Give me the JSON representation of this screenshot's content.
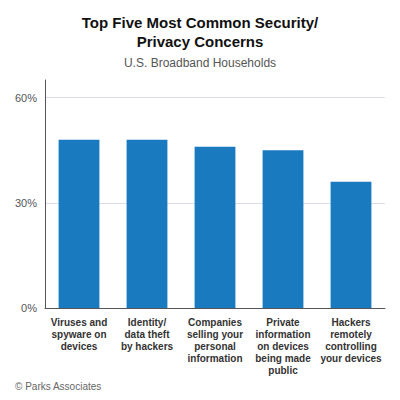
{
  "chart_data": {
    "type": "bar",
    "title": "Top Five Most Common Security/\nPrivacy Concerns",
    "subtitle": "U.S. Broadband Households",
    "footer": "© Parks Associates",
    "categories": [
      "Viruses and\nspyware on\ndevices",
      "Identity/\ndata theft\nby hackers",
      "Companies\nselling your\npersonal\ninformation",
      "Private\ninformation\non devices\nbeing made\npublic",
      "Hackers\nremotely\ncontrolling\nyour devices"
    ],
    "values": [
      48,
      48,
      46,
      45,
      36
    ],
    "color": "#1a7abf",
    "ylim": [
      0,
      65
    ],
    "yticks": [
      {
        "value": 0,
        "label": "0%"
      },
      {
        "value": 30,
        "label": "30%"
      },
      {
        "value": 60,
        "label": "60%"
      }
    ],
    "grid": true
  }
}
